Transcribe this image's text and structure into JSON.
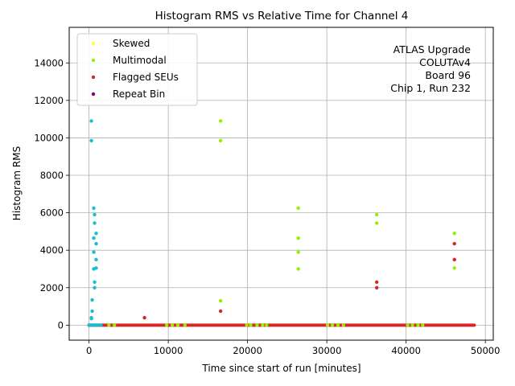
{
  "chart_data": {
    "type": "scatter",
    "title": "Histogram RMS vs Relative Time for Channel 4",
    "xlabel": "Time since start of run [minutes]",
    "ylabel": "Histogram RMS",
    "xlim": [
      -2500,
      51000
    ],
    "ylim": [
      -800,
      15900
    ],
    "xticks": [
      0,
      10000,
      20000,
      30000,
      40000,
      50000
    ],
    "yticks": [
      0,
      2000,
      4000,
      6000,
      8000,
      10000,
      12000,
      14000
    ],
    "grid": true,
    "legend_position": "top-left",
    "annotation": [
      "ATLAS Upgrade",
      "COLUTAv4",
      "Board 96",
      "Chip 1, Run 232"
    ],
    "baseline": {
      "y": 0,
      "x_ranges": [
        [
          0,
          48600
        ]
      ]
    },
    "series": [
      {
        "name": "Skewed",
        "color": "#ffff33",
        "points": []
      },
      {
        "name": "Multimodal",
        "color": "#99ee00",
        "points": [
          [
            16600,
            10900
          ],
          [
            16600,
            9850
          ],
          [
            16600,
            1300
          ],
          [
            26400,
            6250
          ],
          [
            26400,
            4650
          ],
          [
            26400,
            3900
          ],
          [
            26400,
            3000
          ],
          [
            36300,
            5900
          ],
          [
            36300,
            5450
          ],
          [
            46100,
            4900
          ],
          [
            46100,
            3050
          ],
          [
            2500,
            0
          ],
          [
            3200,
            0
          ],
          [
            9800,
            0
          ],
          [
            10500,
            0
          ],
          [
            11200,
            0
          ],
          [
            12100,
            0
          ],
          [
            19900,
            0
          ],
          [
            20400,
            0
          ],
          [
            21200,
            0
          ],
          [
            21900,
            0
          ],
          [
            22400,
            0
          ],
          [
            30100,
            0
          ],
          [
            30700,
            0
          ],
          [
            31400,
            0
          ],
          [
            32100,
            0
          ],
          [
            40200,
            0
          ],
          [
            40800,
            0
          ],
          [
            41500,
            0
          ],
          [
            42100,
            0
          ]
        ]
      },
      {
        "name": "Flagged SEUs",
        "color": "#d62728",
        "points": [
          [
            7000,
            400
          ],
          [
            16600,
            750
          ],
          [
            36300,
            2300
          ],
          [
            36300,
            2000
          ],
          [
            46100,
            4350
          ],
          [
            46100,
            3500
          ]
        ]
      },
      {
        "name": "Repeat Bin",
        "color": "#800080",
        "points": []
      },
      {
        "name": "",
        "color": "#17becf",
        "points": [
          [
            300,
            10900
          ],
          [
            300,
            9850
          ],
          [
            600,
            6250
          ],
          [
            700,
            5900
          ],
          [
            700,
            5450
          ],
          [
            900,
            4900
          ],
          [
            600,
            4650
          ],
          [
            900,
            4350
          ],
          [
            600,
            3900
          ],
          [
            900,
            3500
          ],
          [
            900,
            3050
          ],
          [
            600,
            3000
          ],
          [
            700,
            2300
          ],
          [
            700,
            2000
          ],
          [
            400,
            1350
          ],
          [
            400,
            750
          ],
          [
            300,
            400
          ],
          [
            300,
            350
          ],
          [
            200,
            0
          ],
          [
            500,
            0
          ],
          [
            800,
            0
          ],
          [
            1100,
            0
          ],
          [
            1500,
            0
          ],
          [
            0,
            0
          ]
        ]
      }
    ]
  }
}
